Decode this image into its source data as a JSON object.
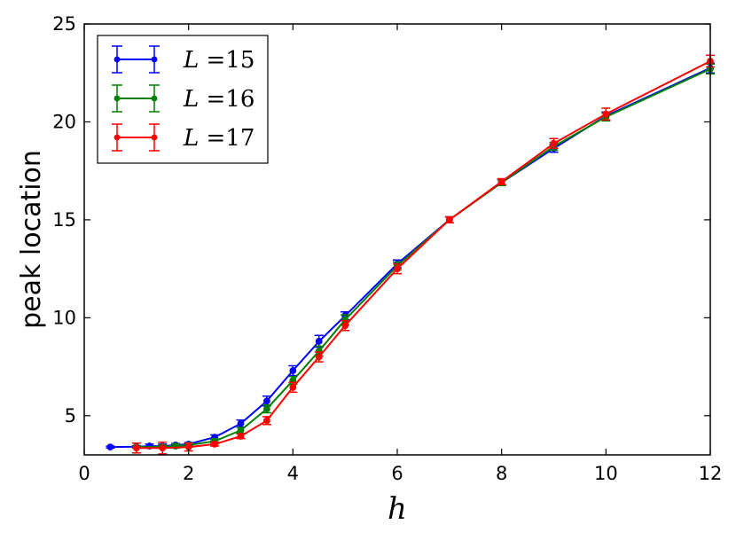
{
  "chart_data": {
    "type": "line",
    "xlabel": "h",
    "ylabel": "peak location",
    "xlim": [
      0,
      12
    ],
    "ylim": [
      3,
      25
    ],
    "xticks": [
      0,
      2,
      4,
      6,
      8,
      10,
      12
    ],
    "yticks": [
      5,
      10,
      15,
      20,
      25
    ],
    "grid": false,
    "legend_position": "top-left",
    "error_bars": true,
    "series": [
      {
        "name": "L =15",
        "legend_var": "L",
        "legend_rest": " =15",
        "color": "#0000ff",
        "x": [
          0.5,
          1.0,
          1.25,
          1.5,
          1.75,
          2.0,
          2.5,
          3.0,
          3.5,
          4.0,
          4.5,
          5.0,
          6.0,
          7.0,
          8.0,
          9.0,
          10.0,
          12.0
        ],
        "y": [
          3.4,
          3.42,
          3.45,
          3.45,
          3.5,
          3.55,
          3.9,
          4.6,
          5.75,
          7.3,
          8.8,
          10.1,
          12.75,
          15.0,
          16.9,
          18.65,
          20.3,
          22.75
        ],
        "err": [
          0.05,
          0.05,
          0.1,
          0.1,
          0.08,
          0.08,
          0.12,
          0.18,
          0.25,
          0.25,
          0.3,
          0.2,
          0.2,
          0.15,
          0.15,
          0.2,
          0.2,
          0.25
        ]
      },
      {
        "name": "L =16",
        "legend_var": "L",
        "legend_rest": " =16",
        "color": "#008000",
        "x": [
          1.0,
          1.5,
          1.75,
          2.0,
          2.5,
          3.0,
          3.5,
          4.0,
          4.5,
          5.0,
          6.0,
          7.0,
          8.0,
          9.0,
          10.0,
          12.0
        ],
        "y": [
          3.4,
          3.42,
          3.45,
          3.5,
          3.7,
          4.25,
          5.35,
          6.8,
          8.3,
          9.9,
          12.65,
          15.0,
          16.9,
          18.75,
          20.25,
          22.7
        ],
        "err": [
          0.05,
          0.08,
          0.1,
          0.1,
          0.12,
          0.15,
          0.2,
          0.2,
          0.25,
          0.25,
          0.2,
          0.15,
          0.15,
          0.2,
          0.2,
          0.25
        ]
      },
      {
        "name": "L =17",
        "legend_var": "L",
        "legend_rest": " =17",
        "color": "#ff0000",
        "x": [
          1.0,
          1.5,
          2.0,
          2.5,
          3.0,
          3.5,
          4.0,
          4.5,
          5.0,
          6.0,
          7.0,
          8.0,
          9.0,
          10.0,
          12.0
        ],
        "y": [
          3.35,
          3.35,
          3.4,
          3.55,
          3.95,
          4.75,
          6.45,
          8.0,
          9.6,
          12.5,
          15.0,
          16.95,
          18.9,
          20.4,
          23.1
        ],
        "err": [
          0.25,
          0.3,
          0.2,
          0.1,
          0.12,
          0.2,
          0.25,
          0.25,
          0.25,
          0.25,
          0.15,
          0.15,
          0.25,
          0.3,
          0.3
        ]
      }
    ]
  }
}
